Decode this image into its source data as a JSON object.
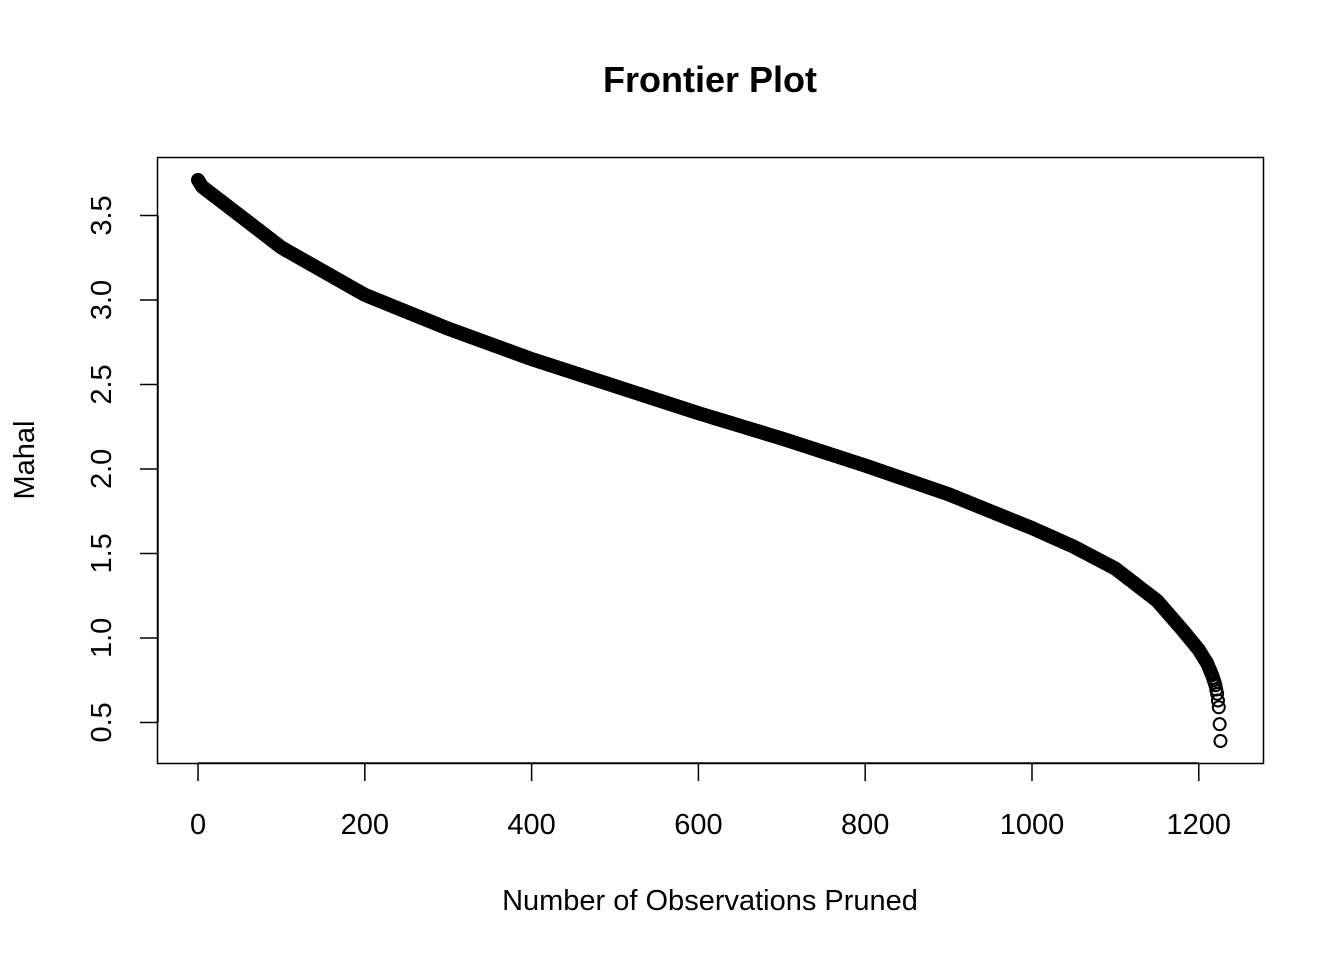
{
  "chart_data": {
    "type": "scatter",
    "title": "Frontier Plot",
    "xlabel": "Number of Observations Pruned",
    "ylabel": "Mahal",
    "xlim": [
      -48,
      1277
    ],
    "ylim": [
      0.26,
      3.84
    ],
    "xticks": [
      0,
      200,
      400,
      600,
      800,
      1000,
      1200
    ],
    "xtick_labels": [
      "0",
      "200",
      "400",
      "600",
      "800",
      "1000",
      "1200"
    ],
    "yticks": [
      0.5,
      1.0,
      1.5,
      2.0,
      2.5,
      3.0,
      3.5
    ],
    "ytick_labels": [
      "0.5",
      "1.0",
      "1.5",
      "2.0",
      "2.5",
      "3.0",
      "3.5"
    ],
    "grid": false,
    "marker": "open-circle",
    "point_color": "#000000",
    "series_count_points": 1229,
    "curve_anchors": {
      "x": [
        0,
        5,
        50,
        100,
        200,
        300,
        400,
        500,
        600,
        700,
        800,
        900,
        1000,
        1050,
        1100,
        1150,
        1180,
        1200,
        1210,
        1216,
        1220,
        1222,
        1224,
        1226
      ],
      "y": [
        3.71,
        3.67,
        3.5,
        3.31,
        3.03,
        2.83,
        2.65,
        2.49,
        2.33,
        2.18,
        2.02,
        1.85,
        1.65,
        1.54,
        1.41,
        1.22,
        1.05,
        0.93,
        0.85,
        0.78,
        0.72,
        0.67,
        0.59,
        0.39
      ]
    }
  }
}
